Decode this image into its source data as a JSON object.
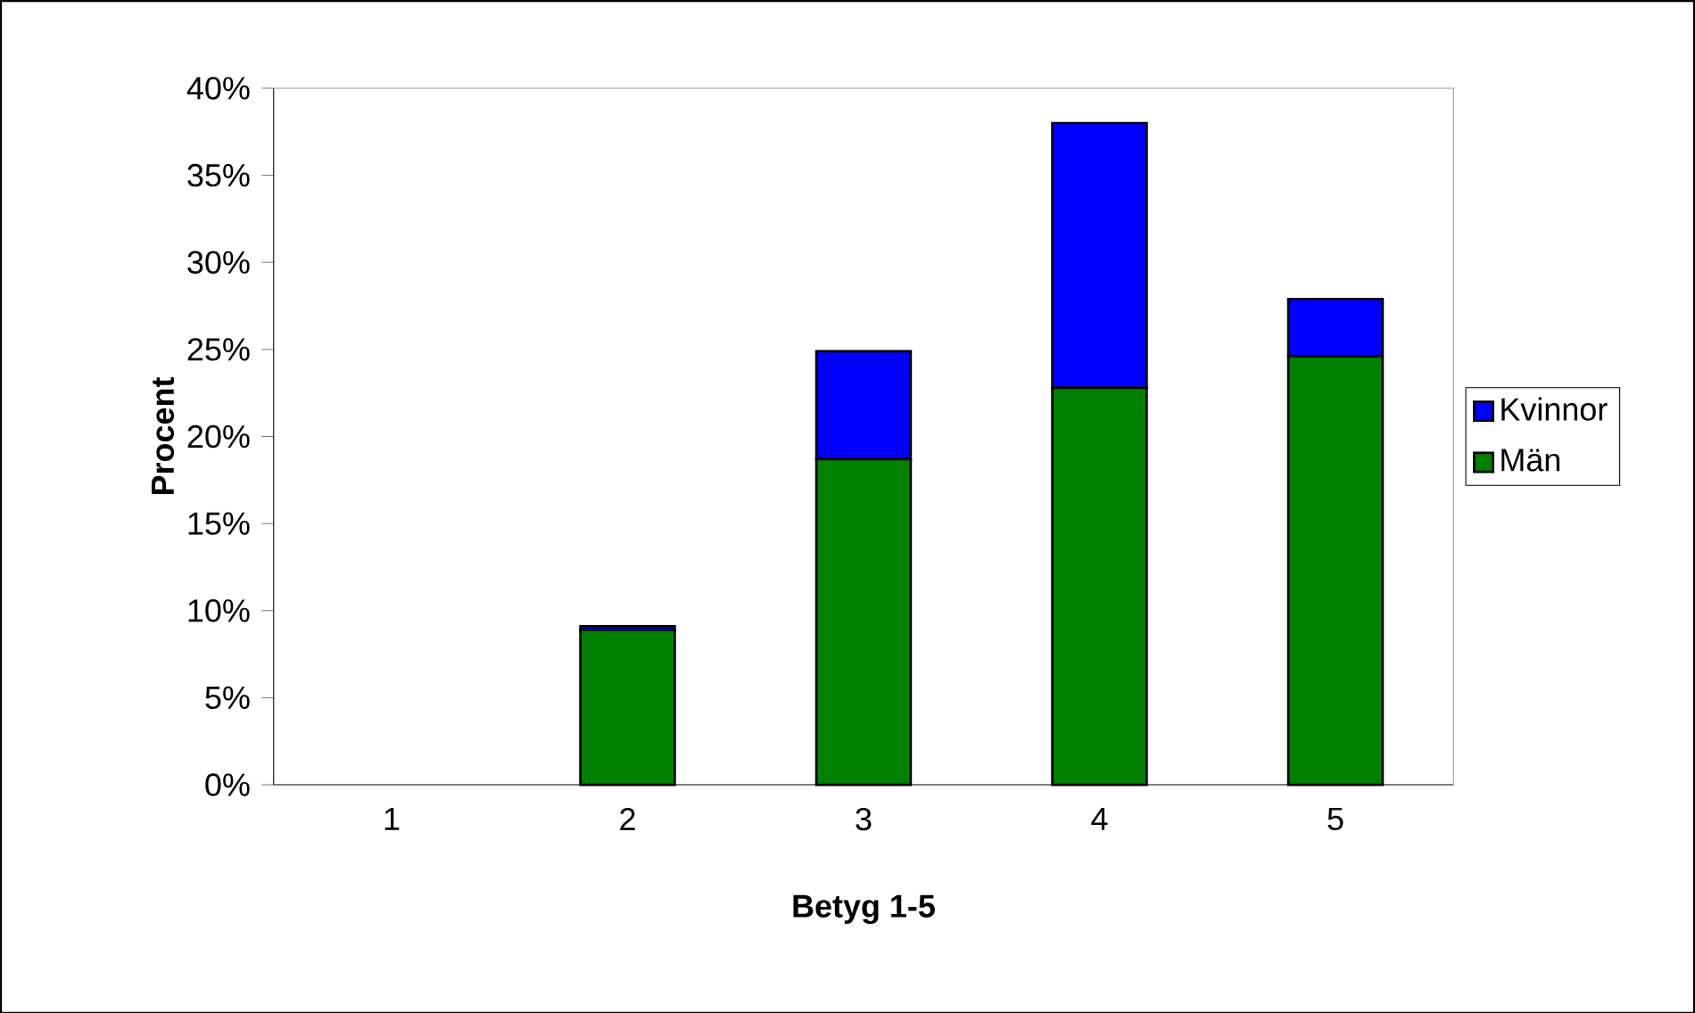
{
  "chart_data": {
    "type": "bar",
    "stacked": true,
    "xlabel": "Betyg 1-5",
    "ylabel": "Procent",
    "categories": [
      "1",
      "2",
      "3",
      "4",
      "5"
    ],
    "series": [
      {
        "name": "Män",
        "color": "#008000",
        "values": [
          0,
          8.9,
          18.7,
          22.8,
          24.6
        ]
      },
      {
        "name": "Kvinnor",
        "color": "#0000ff",
        "values": [
          0,
          0.2,
          6.2,
          15.2,
          3.3
        ]
      }
    ],
    "ylim": [
      0,
      40
    ],
    "yticks": [
      {
        "value": 0,
        "label": "0%"
      },
      {
        "value": 5,
        "label": "5%"
      },
      {
        "value": 10,
        "label": "10%"
      },
      {
        "value": 15,
        "label": "15%"
      },
      {
        "value": 20,
        "label": "20%"
      },
      {
        "value": 25,
        "label": "25%"
      },
      {
        "value": 30,
        "label": "30%"
      },
      {
        "value": 35,
        "label": "35%"
      },
      {
        "value": 40,
        "label": "40%"
      }
    ],
    "legend": "right",
    "grid": false
  }
}
